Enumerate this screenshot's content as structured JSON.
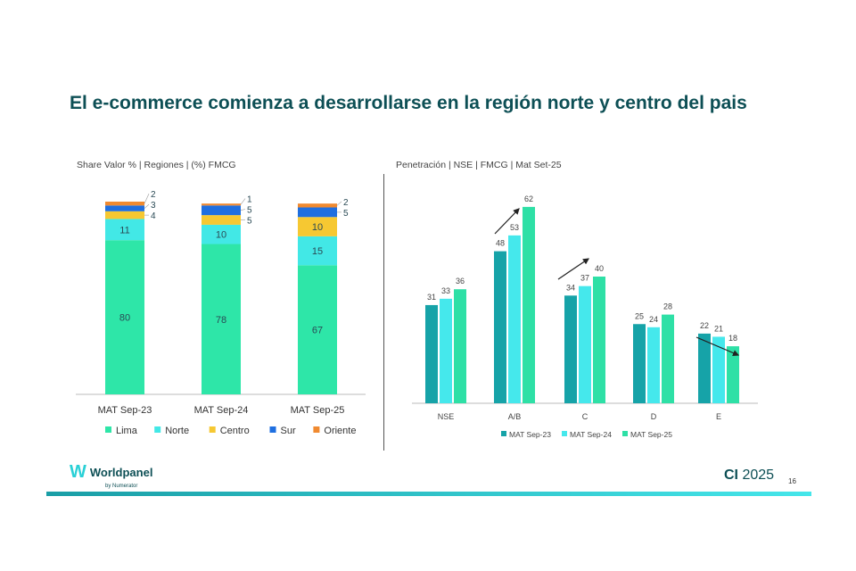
{
  "title": "El e-commerce comienza a desarrollarse en la región norte y centro del pais",
  "footer": {
    "logo": "Worldpanel",
    "logo_sub": "by Numerator",
    "brand_prefix": "CI",
    "brand_year": "2025",
    "page": "16"
  },
  "colors": {
    "Lima": "#2ee6a8",
    "Norte": "#42e8e6",
    "Centro": "#f6c832",
    "Sur": "#1f6fe0",
    "Oriente": "#f08a30",
    "MAT Sep-23": "#16a3a8",
    "MAT Sep-24": "#45e8ec",
    "MAT Sep-25": "#2ee0a6"
  },
  "chart_data": [
    {
      "type": "bar",
      "stacked": true,
      "title": "Share Valor % | Regiones |  (%) FMCG",
      "categories": [
        "MAT Sep-23",
        "MAT Sep-24",
        "MAT Sep-25"
      ],
      "series": [
        {
          "name": "Lima",
          "values": [
            80,
            78,
            67
          ]
        },
        {
          "name": "Norte",
          "values": [
            11,
            10,
            15
          ]
        },
        {
          "name": "Centro",
          "values": [
            4,
            5,
            10
          ]
        },
        {
          "name": "Sur",
          "values": [
            3,
            5,
            5
          ]
        },
        {
          "name": "Oriente",
          "values": [
            2,
            1,
            2
          ]
        }
      ],
      "ylim": [
        0,
        100
      ],
      "legend": "bottom",
      "grid": false
    },
    {
      "type": "bar",
      "title": "Penetración | NSE | FMCG | Mat Set-25",
      "categories": [
        "NSE",
        "A/B",
        "C",
        "D",
        "E"
      ],
      "series": [
        {
          "name": "MAT Sep-23",
          "values": [
            31,
            48,
            34,
            25,
            22
          ]
        },
        {
          "name": "MAT Sep-24",
          "values": [
            33,
            53,
            37,
            24,
            21
          ]
        },
        {
          "name": "MAT Sep-25",
          "values": [
            36,
            62,
            40,
            28,
            18
          ]
        }
      ],
      "annotations": [
        {
          "category": "A/B",
          "arrow": "up"
        },
        {
          "category": "C",
          "arrow": "up"
        },
        {
          "category": "E",
          "arrow": "down"
        }
      ],
      "legend": "bottom",
      "grid": false
    }
  ]
}
